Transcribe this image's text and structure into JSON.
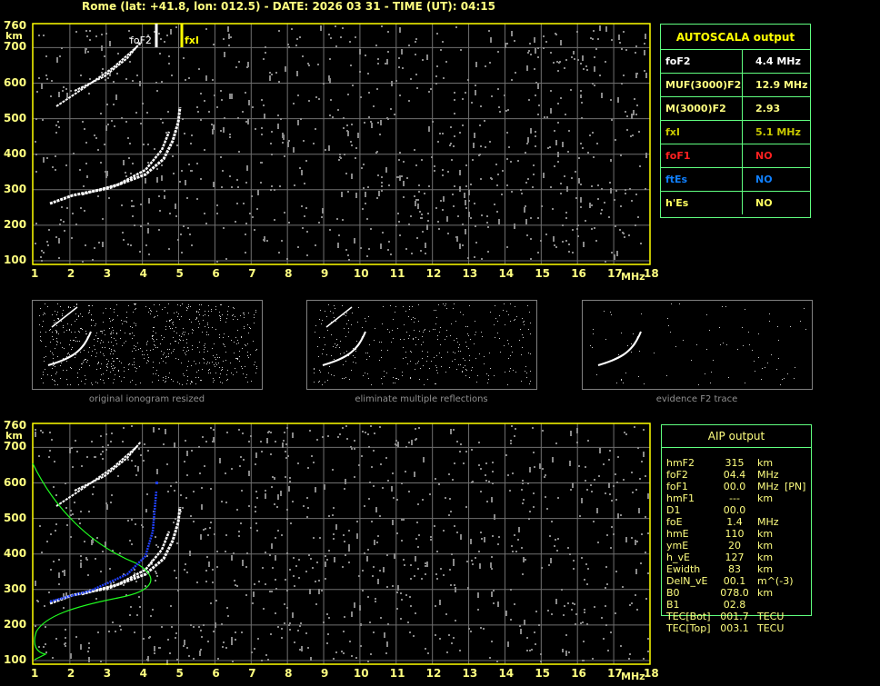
{
  "header": {
    "title": "Rome (lat: +41.8, lon: 012.5) - DATE: 2026 03 31 - TIME (UT): 04:15"
  },
  "ionogram": {
    "y_unit": "km",
    "x_unit": "MHz",
    "y_ticks": [
      "760",
      "700",
      "600",
      "500",
      "400",
      "300",
      "200",
      "100"
    ],
    "x_ticks": [
      "1",
      "2",
      "3",
      "4",
      "5",
      "6",
      "7",
      "8",
      "9",
      "10",
      "11",
      "12",
      "13",
      "14",
      "15",
      "16",
      "17",
      "18"
    ],
    "markers": {
      "foF2": "foF2",
      "fxI": "fxI"
    }
  },
  "autoscala": {
    "title": "AUTOSCALA output",
    "rows": [
      {
        "key": "foF2",
        "value": "4.4 MHz",
        "color": "#ffffff"
      },
      {
        "key": "MUF(3000)F2",
        "value": "12.9 MHz",
        "color": "#ffff80"
      },
      {
        "key": "M(3000)F2",
        "value": "2.93",
        "color": "#ffff80"
      },
      {
        "key": "fxI",
        "value": "5.1 MHz",
        "color": "#c8c800"
      },
      {
        "key": "foF1",
        "value": "NO",
        "color": "#ff2020"
      },
      {
        "key": "ftEs",
        "value": "NO",
        "color": "#1080ff"
      },
      {
        "key": "h'Es",
        "value": "NO",
        "color": "#ffff60"
      }
    ]
  },
  "thumbnails": [
    {
      "caption": "original ionogram resized"
    },
    {
      "caption": "eliminate multiple reflections"
    },
    {
      "caption": "evidence F2 trace"
    }
  ],
  "aip": {
    "title": "AIP output",
    "rows": [
      [
        "hmF2",
        "315",
        "km",
        ""
      ],
      [
        "foF2",
        "04.4",
        "MHz",
        ""
      ],
      [
        "foF1",
        "00.0",
        "MHz",
        "[PN]"
      ],
      [
        "hmF1",
        "---",
        "km",
        ""
      ],
      [
        "D1",
        "00.0",
        "",
        ""
      ],
      [
        "foE",
        "1.4",
        "MHz",
        ""
      ],
      [
        "hmE",
        "110",
        "km",
        ""
      ],
      [
        "ymE",
        "20",
        "km",
        ""
      ],
      [
        "h_vE",
        "127",
        "km",
        ""
      ],
      [
        "Ewidth",
        "83",
        "km",
        ""
      ],
      [
        "DelN_vE",
        "00.1",
        "m^(-3)",
        ""
      ],
      [
        "B0",
        "078.0",
        "km",
        ""
      ],
      [
        "B1",
        "02.8",
        "",
        ""
      ],
      [
        "TEC[Bot]",
        "001.7",
        "TECU",
        ""
      ],
      [
        "TEC[Top]",
        "003.1",
        "TECU",
        ""
      ]
    ]
  }
}
